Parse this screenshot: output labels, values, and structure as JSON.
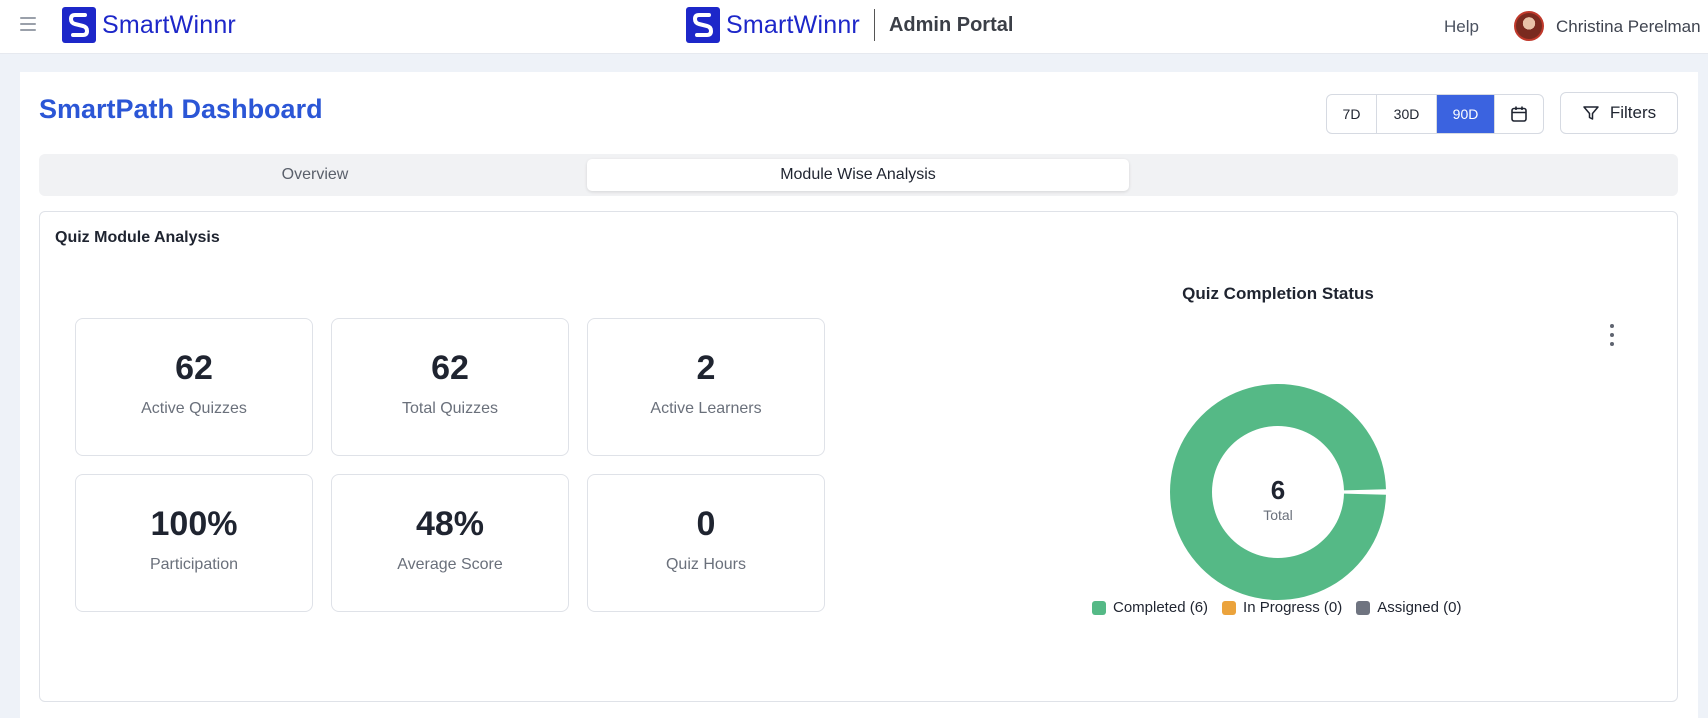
{
  "header": {
    "brand_left": "SmartWinnr",
    "brand_center": "SmartWinnr",
    "portal_label": "Admin Portal",
    "help_label": "Help",
    "user_name": "Christina Perelman"
  },
  "page": {
    "title": "SmartPath Dashboard",
    "ranges": [
      "7D",
      "30D",
      "90D"
    ],
    "active_range": "90D",
    "filters_label": "Filters"
  },
  "tabs": [
    {
      "label": "Overview",
      "active": false
    },
    {
      "label": "Module Wise Analysis",
      "active": true
    }
  ],
  "card": {
    "title": "Quiz Module Analysis",
    "stats": [
      {
        "value": "62",
        "label": "Active Quizzes"
      },
      {
        "value": "62",
        "label": "Total Quizzes"
      },
      {
        "value": "2",
        "label": "Active Learners"
      },
      {
        "value": "100%",
        "label": "Participation"
      },
      {
        "value": "48%",
        "label": "Average Score"
      },
      {
        "value": "0",
        "label": "Quiz Hours"
      }
    ]
  },
  "chart_data": {
    "type": "pie",
    "title": "Quiz Completion Status",
    "center_value": "6",
    "center_label": "Total",
    "categories": [
      "Completed",
      "In Progress",
      "Assigned"
    ],
    "values": [
      6,
      0,
      0
    ],
    "legend_labels": [
      "Completed (6)",
      "In Progress (0)",
      "Assigned (0)"
    ],
    "colors": [
      "#55b986",
      "#eba33c",
      "#6f7480"
    ],
    "legend_position": "bottom"
  }
}
